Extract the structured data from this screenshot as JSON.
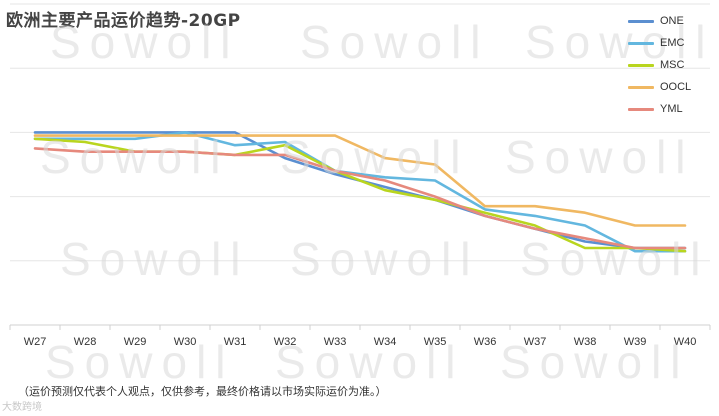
{
  "chart_data": {
    "type": "line",
    "title": "欧洲主要产品运价趋势-20GP",
    "categories": [
      "W27",
      "W28",
      "W29",
      "W30",
      "W31",
      "W32",
      "W33",
      "W34",
      "W35",
      "W36",
      "W37",
      "W38",
      "W39",
      "W40"
    ],
    "ylim": [
      0,
      5
    ],
    "grid": "horizontal",
    "legend_position": "top-right",
    "series": [
      {
        "name": "ONE",
        "color": "#5b8fd0",
        "values": [
          3.0,
          3.0,
          3.0,
          3.0,
          3.0,
          2.6,
          2.35,
          2.15,
          1.95,
          1.7,
          1.5,
          1.3,
          1.2,
          1.2
        ]
      },
      {
        "name": "EMC",
        "color": "#63b7df",
        "values": [
          2.9,
          2.9,
          2.9,
          3.0,
          2.8,
          2.85,
          2.4,
          2.3,
          2.25,
          1.8,
          1.7,
          1.55,
          1.15,
          1.15
        ]
      },
      {
        "name": "MSC",
        "color": "#b9d51f",
        "values": [
          2.9,
          2.85,
          2.7,
          2.7,
          2.65,
          2.8,
          2.4,
          2.1,
          1.95,
          1.75,
          1.55,
          1.2,
          1.2,
          1.15
        ]
      },
      {
        "name": "OOCL",
        "color": "#f0b862",
        "values": [
          2.95,
          2.95,
          2.95,
          2.95,
          2.95,
          2.95,
          2.95,
          2.6,
          2.5,
          1.85,
          1.85,
          1.75,
          1.55,
          1.55
        ]
      },
      {
        "name": "YML",
        "color": "#e6897d",
        "values": [
          2.75,
          2.7,
          2.7,
          2.7,
          2.65,
          2.65,
          2.4,
          2.25,
          2.0,
          1.7,
          1.5,
          1.35,
          1.2,
          1.2
        ]
      }
    ]
  },
  "footnote": "（运价预测仅代表个人观点，仅供参考，最终价格请以市场实际运价为准。）",
  "watermark": "Sowoll",
  "badge_text": "大数跨境"
}
